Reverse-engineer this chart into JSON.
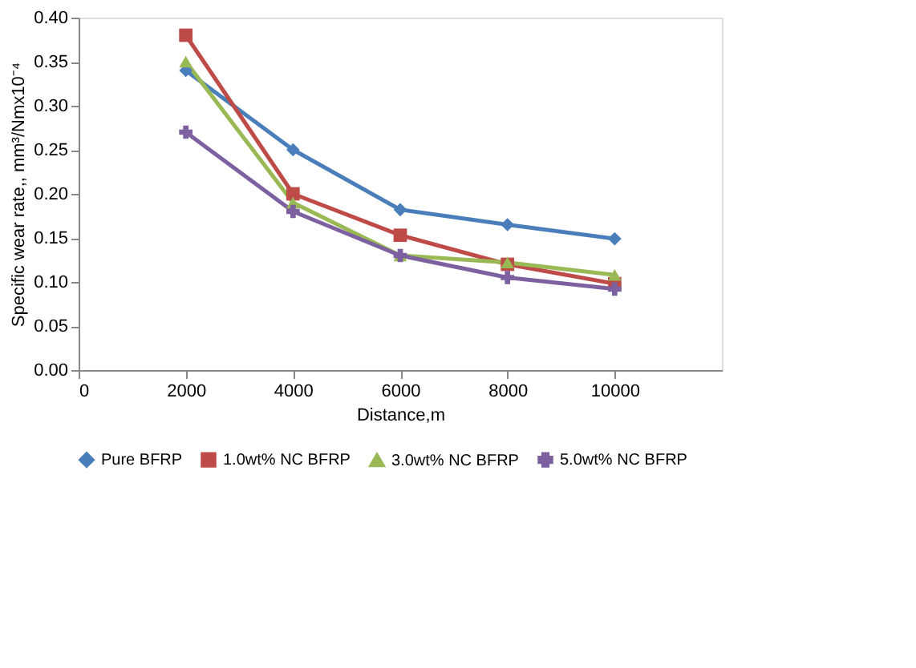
{
  "chart_data": {
    "type": "line",
    "xlabel": "Distance,m",
    "ylabel": "Specific wear rate,, mm³/Nmx10⁻⁴",
    "x": [
      2000,
      4000,
      6000,
      8000,
      10000
    ],
    "xlim": [
      0,
      12000
    ],
    "xticks": [
      0,
      2000,
      4000,
      6000,
      8000,
      10000
    ],
    "ylim": [
      0,
      0.4
    ],
    "yticks": [
      {
        "value": 0,
        "label": "0.00"
      },
      {
        "value": 0.05,
        "label": "0.05"
      },
      {
        "value": 0.1,
        "label": "0.10"
      },
      {
        "value": 0.15,
        "label": "0.15"
      },
      {
        "value": 0.2,
        "label": "0.20"
      },
      {
        "value": 0.25,
        "label": "0.25"
      },
      {
        "value": 0.3,
        "label": "0.30"
      },
      {
        "value": 0.35,
        "label": "0.35"
      },
      {
        "value": 0.4,
        "label": "0.40"
      }
    ],
    "grid": false,
    "legend": "bottom",
    "line_style": "solid",
    "series": [
      {
        "name": "Pure BFRP",
        "color": "#4a7ebb",
        "marker": "diamond",
        "values": [
          0.34,
          0.25,
          0.182,
          0.165,
          0.149
        ]
      },
      {
        "name": "1.0wt% NC BFRP",
        "color": "#be4b48",
        "marker": "square",
        "values": [
          0.38,
          0.2,
          0.153,
          0.12,
          0.098
        ]
      },
      {
        "name": "3.0wt% NC BFRP",
        "color": "#98b954",
        "marker": "triangle",
        "values": [
          0.35,
          0.19,
          0.13,
          0.122,
          0.108
        ]
      },
      {
        "name": "5.0wt% NC BFRP",
        "color": "#7d60a0",
        "marker": "cross",
        "values": [
          0.27,
          0.18,
          0.13,
          0.105,
          0.092
        ]
      }
    ]
  }
}
